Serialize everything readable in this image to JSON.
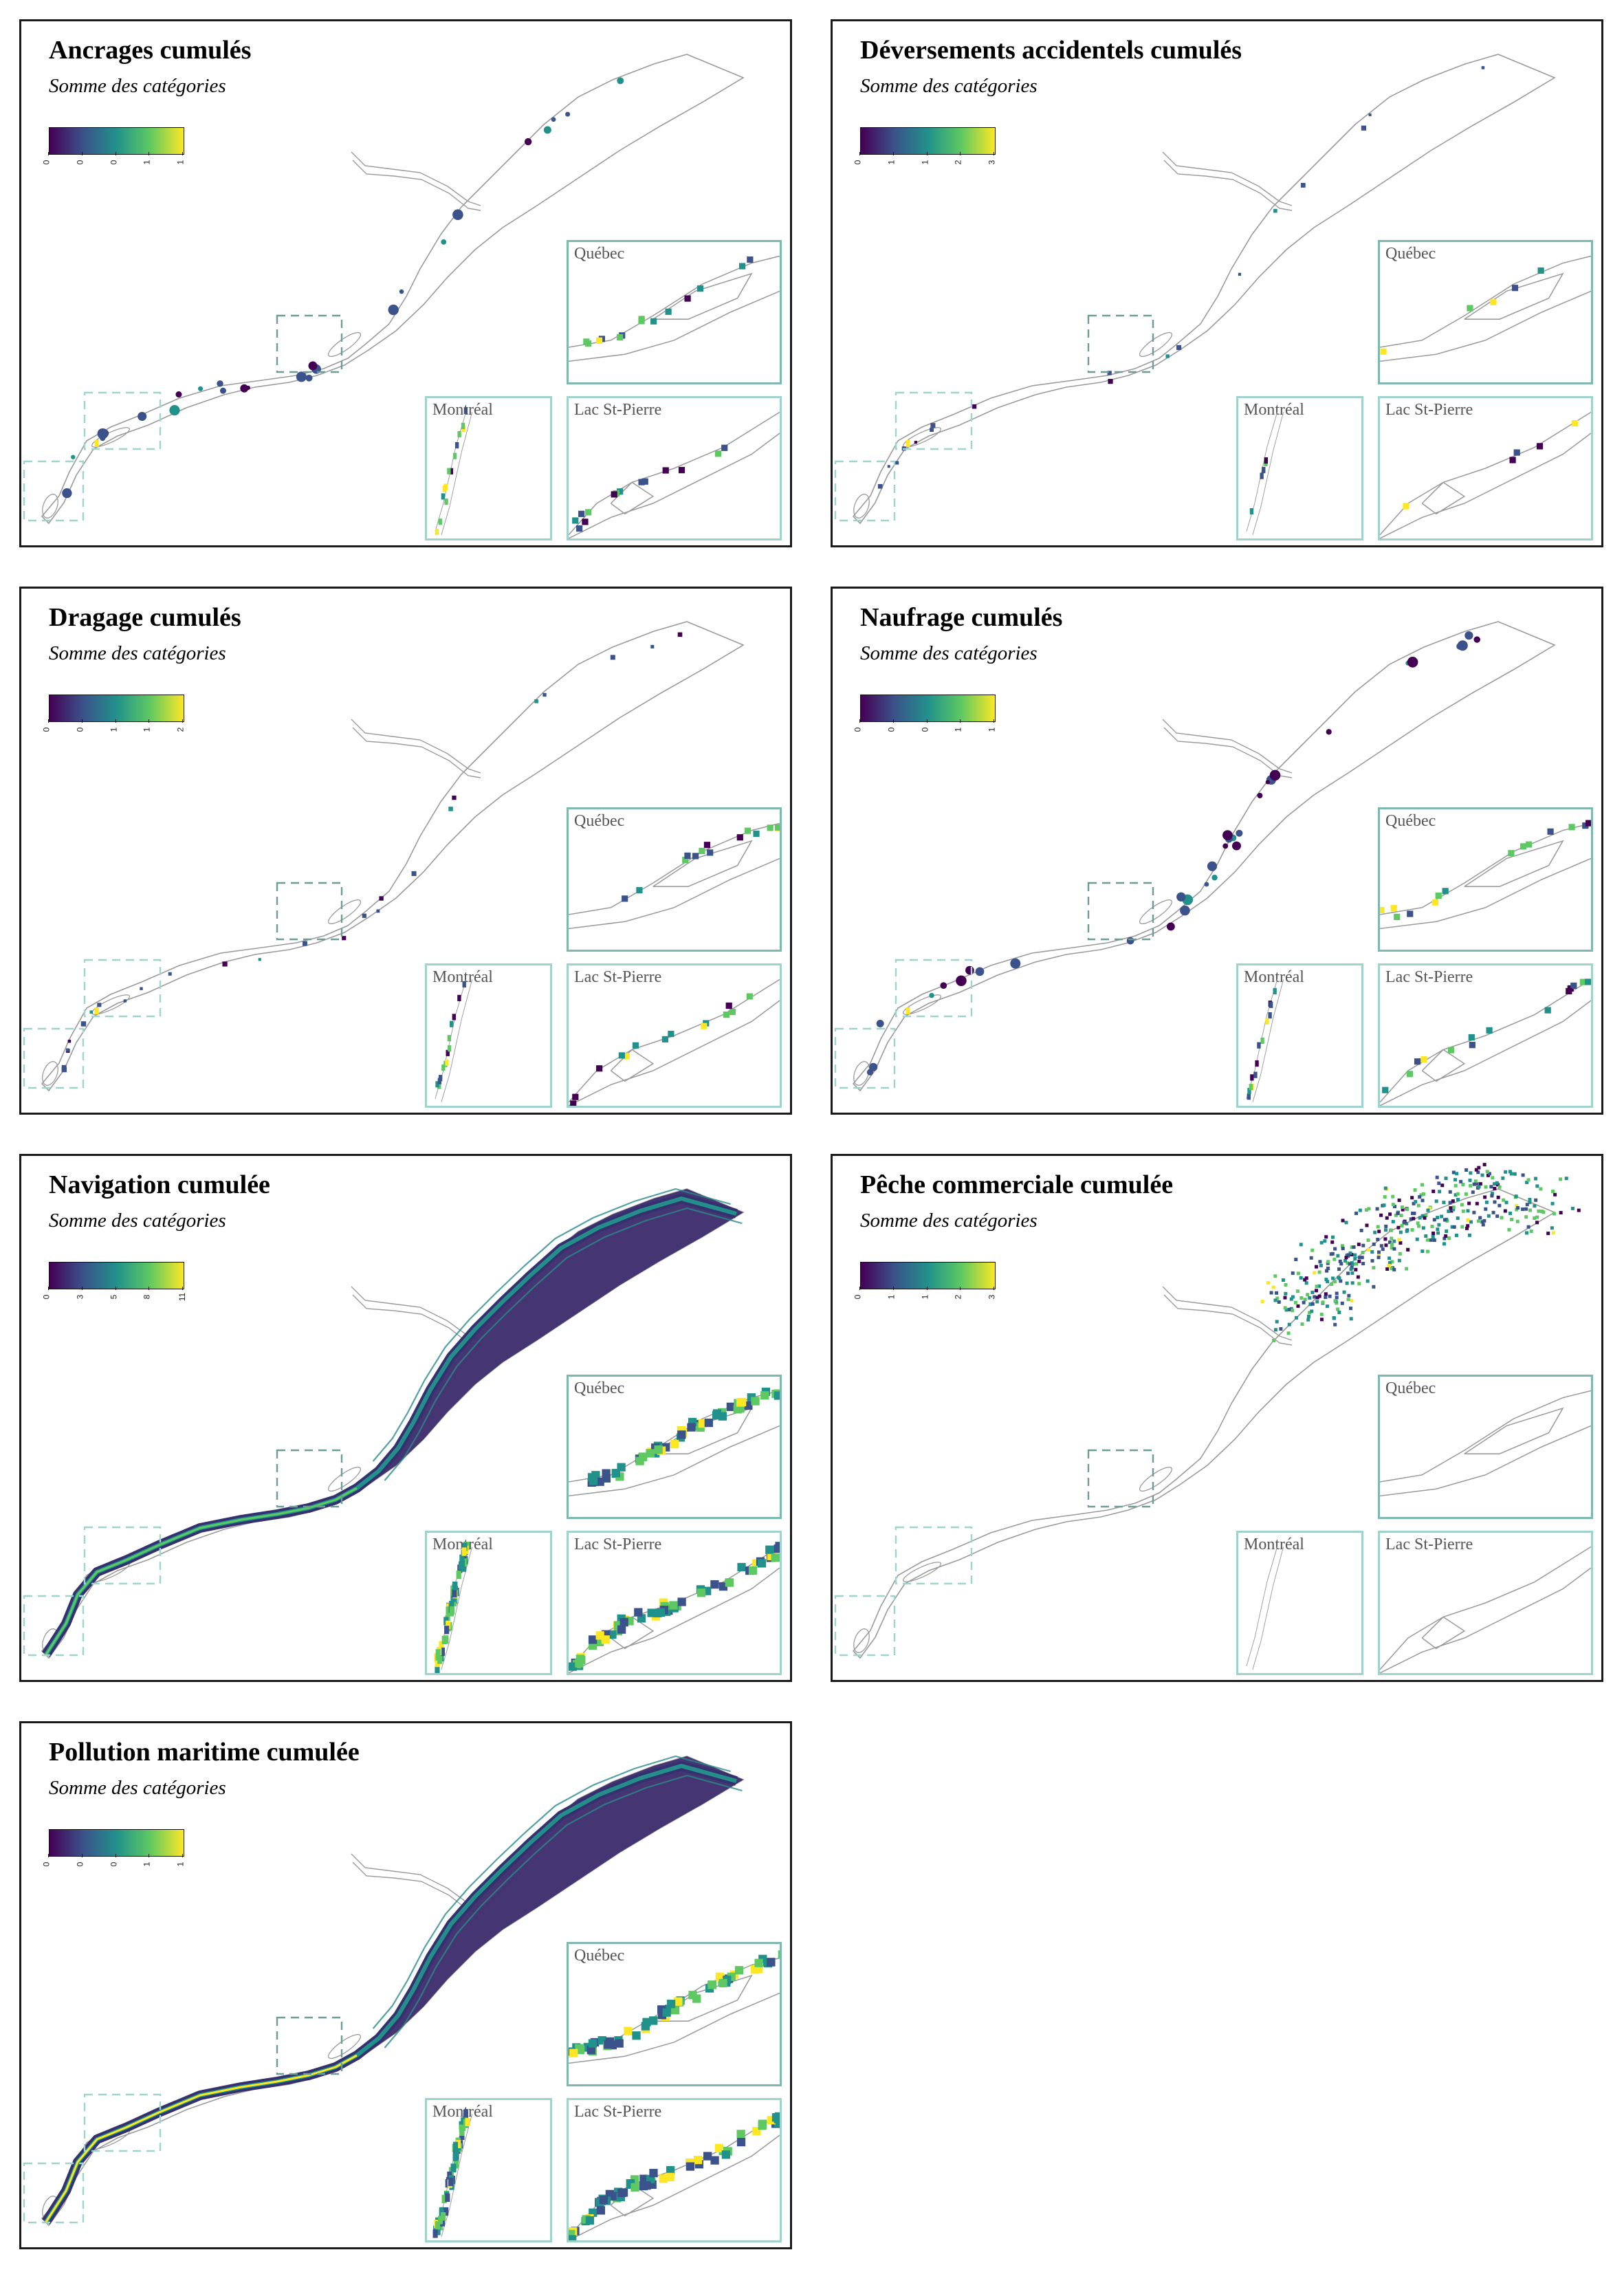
{
  "subtitle": "Somme des catégories",
  "insets": {
    "quebec": "Québec",
    "montreal": "Montréal",
    "lac": "Lac St-Pierre"
  },
  "colormap": [
    "#440154",
    "#3b528b",
    "#21918c",
    "#5ec962",
    "#fde725"
  ],
  "panels": [
    {
      "id": "ancrages",
      "title": "Ancrages cumulés",
      "ticks": [
        "0",
        "0",
        "0",
        "1",
        "1"
      ],
      "pattern": "spots",
      "density": "sparse"
    },
    {
      "id": "deversements",
      "title": "Déversements accidentels cumulés",
      "ticks": [
        "0",
        "1",
        "1",
        "2",
        "3"
      ],
      "pattern": "dots",
      "density": "very-sparse"
    },
    {
      "id": "dragage",
      "title": "Dragage cumulés",
      "ticks": [
        "0",
        "0",
        "1",
        "1",
        "2"
      ],
      "pattern": "channel-dots",
      "density": "sparse"
    },
    {
      "id": "naufrage",
      "title": "Naufrage cumulés",
      "ticks": [
        "0",
        "0",
        "0",
        "1",
        "1"
      ],
      "pattern": "spots",
      "density": "medium"
    },
    {
      "id": "navigation",
      "title": "Navigation cumulée",
      "ticks": [
        "0",
        "3",
        "5",
        "8",
        "11"
      ],
      "pattern": "fill",
      "density": "full"
    },
    {
      "id": "peche",
      "title": "Pêche commerciale cumulée",
      "ticks": [
        "0",
        "1",
        "1",
        "2",
        "3"
      ],
      "pattern": "estuary",
      "density": "estuary-only"
    },
    {
      "id": "pollution",
      "title": "Pollution maritime cumulée",
      "ticks": [
        "0",
        "0",
        "0",
        "1",
        "1"
      ],
      "pattern": "fill",
      "density": "full"
    }
  ]
}
